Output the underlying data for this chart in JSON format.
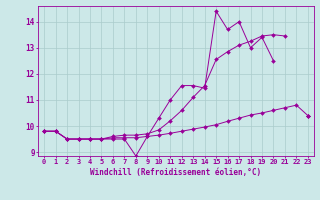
{
  "x_data": [
    0,
    1,
    2,
    3,
    4,
    5,
    6,
    7,
    8,
    9,
    10,
    11,
    12,
    13,
    14,
    15,
    16,
    17,
    18,
    19,
    20,
    21,
    22,
    23
  ],
  "line1_y": [
    9.8,
    9.8,
    9.5,
    9.5,
    9.5,
    9.5,
    9.5,
    9.5,
    8.85,
    9.6,
    10.3,
    11.0,
    11.55,
    11.55,
    11.45,
    14.4,
    13.7,
    14.0,
    13.0,
    13.4,
    12.5,
    null,
    null,
    10.4
  ],
  "line2_y": [
    9.8,
    9.8,
    9.5,
    9.5,
    9.5,
    9.5,
    9.55,
    9.55,
    9.55,
    9.6,
    9.65,
    9.72,
    9.8,
    9.88,
    9.96,
    10.05,
    10.18,
    10.3,
    10.42,
    10.5,
    10.6,
    10.7,
    10.8,
    10.4
  ],
  "line3_y": [
    9.8,
    9.8,
    9.5,
    9.5,
    9.5,
    9.5,
    9.6,
    9.65,
    9.65,
    9.7,
    9.85,
    10.2,
    10.6,
    11.1,
    11.55,
    12.55,
    12.85,
    13.1,
    13.25,
    13.45,
    13.5,
    13.45,
    null,
    10.4
  ],
  "line_color": "#990099",
  "bg_color": "#cce8e8",
  "grid_color": "#aacccc",
  "xlabel": "Windchill (Refroidissement éolien,°C)",
  "xlim": [
    -0.5,
    23.5
  ],
  "ylim": [
    8.85,
    14.6
  ],
  "yticks": [
    9,
    10,
    11,
    12,
    13,
    14
  ],
  "xticks": [
    0,
    1,
    2,
    3,
    4,
    5,
    6,
    7,
    8,
    9,
    10,
    11,
    12,
    13,
    14,
    15,
    16,
    17,
    18,
    19,
    20,
    21,
    22,
    23
  ],
  "figsize": [
    3.2,
    2.0
  ],
  "dpi": 100
}
